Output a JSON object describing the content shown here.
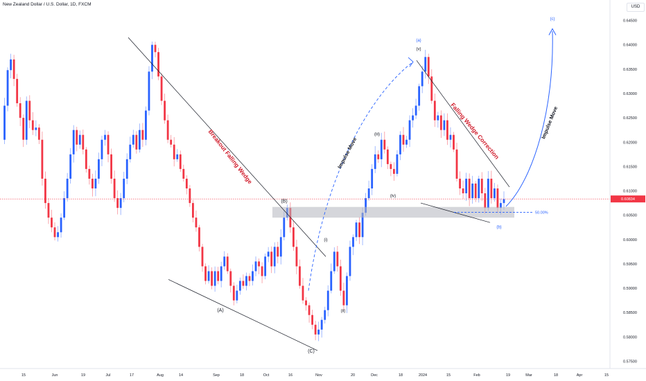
{
  "header": {
    "title": "New Zealand Dollar / U.S. Dollar, 1D, FXCM",
    "currency_label": "USD"
  },
  "chart_data": {
    "type": "candlestick",
    "title": "New Zealand Dollar / U.S. Dollar, 1D, FXCM",
    "y_axis": {
      "min": 0.5745,
      "max": 0.6475,
      "position": "right",
      "ticks": [
        "0.57500",
        "0.58000",
        "0.58500",
        "0.59000",
        "0.59500",
        "0.60000",
        "0.60500",
        "0.61000",
        "0.61500",
        "0.62000",
        "0.62500",
        "0.63000",
        "0.63500",
        "0.64000",
        "0.64500"
      ]
    },
    "x_axis": {
      "ticks": [
        "15",
        "Jun",
        "19",
        "Jul",
        "17",
        "Aug",
        "14",
        "Sep",
        "18",
        "Oct",
        "16",
        "Nov",
        "20",
        "Dec",
        "18",
        "2024",
        "15",
        "Feb",
        "19",
        "Mar",
        "18",
        "Apr",
        "15"
      ]
    },
    "last_price": {
      "value": 0.60834,
      "label": "0.60834"
    },
    "colors": {
      "up": "#2962ff",
      "down": "#f23645",
      "trendline": "#131722",
      "annotation_red": "#d1202f",
      "annotation_blue": "#2962ff",
      "zone": "#b2b5be"
    },
    "price_path": [
      0.6205,
      0.6275,
      0.6348,
      0.637,
      0.633,
      0.628,
      0.625,
      0.6205,
      0.6285,
      0.6245,
      0.6225,
      0.623,
      0.6205,
      0.6125,
      0.6075,
      0.6045,
      0.6025,
      0.6005,
      0.6015,
      0.6045,
      0.6085,
      0.6125,
      0.6175,
      0.6225,
      0.6195,
      0.6215,
      0.6185,
      0.6145,
      0.6125,
      0.6105,
      0.6125,
      0.6165,
      0.6205,
      0.6215,
      0.6175,
      0.6125,
      0.6085,
      0.6065,
      0.6085,
      0.6125,
      0.6165,
      0.6195,
      0.6215,
      0.6185,
      0.6225,
      0.6205,
      0.6265,
      0.6345,
      0.64,
      0.6385,
      0.6335,
      0.6285,
      0.6245,
      0.6205,
      0.6195,
      0.6165,
      0.6175,
      0.6145,
      0.6125,
      0.6105,
      0.6075,
      0.6045,
      0.6025,
      0.5985,
      0.5945,
      0.5915,
      0.5935,
      0.5905,
      0.5935,
      0.5915,
      0.5945,
      0.5965,
      0.5935,
      0.5905,
      0.5875,
      0.5895,
      0.5915,
      0.5905,
      0.5925,
      0.5915,
      0.5935,
      0.5955,
      0.5945,
      0.5925,
      0.5965,
      0.5975,
      0.5945,
      0.5985,
      0.5965,
      0.6005,
      0.6045,
      0.6065,
      0.6025,
      0.5985,
      0.5945,
      0.5905,
      0.5875,
      0.5865,
      0.5845,
      0.5825,
      0.5805,
      0.5815,
      0.5835,
      0.5855,
      0.5895,
      0.5935,
      0.5975,
      0.5945,
      0.5895,
      0.5865,
      0.5925,
      0.5985,
      0.6005,
      0.6035,
      0.6005,
      0.6055,
      0.6085,
      0.6105,
      0.6145,
      0.6175,
      0.6165,
      0.6205,
      0.6185,
      0.6155,
      0.6145,
      0.6135,
      0.6175,
      0.6215,
      0.6195,
      0.6205,
      0.6245,
      0.6255,
      0.6275,
      0.6315,
      0.6345,
      0.6375,
      0.6335,
      0.6285,
      0.6245,
      0.6255,
      0.6225,
      0.6245,
      0.6205,
      0.6215,
      0.6185,
      0.6125,
      0.6105,
      0.6095,
      0.6125,
      0.6085,
      0.6115,
      0.6085,
      0.6125,
      0.6095,
      0.6065,
      0.6125,
      0.6085,
      0.6105,
      0.6065,
      0.6075,
      0.6083
    ],
    "trendlines": [
      {
        "from": [
          185,
          0.6415
        ],
        "to": [
          470,
          0.5965
        ]
      },
      {
        "from": [
          243,
          0.5918
        ],
        "to": [
          458,
          0.5772
        ]
      },
      {
        "from": [
          601,
          0.6368
        ],
        "to": [
          735,
          0.6108
        ]
      },
      {
        "from": [
          607,
          0.6075
        ],
        "to": [
          707,
          0.6035
        ]
      }
    ],
    "zone": {
      "x_start": 393,
      "x_end": 742,
      "top": 0.6067,
      "bottom": 0.6045
    },
    "fib_level": {
      "value": 0.6056,
      "label": "50.00%"
    },
    "wave_labels": [
      {
        "text": "(A)",
        "x": 318,
        "price": 0.5852
      },
      {
        "text": "(B)",
        "x": 410,
        "price": 0.6076
      },
      {
        "text": "(C)",
        "x": 449,
        "price": 0.5768
      },
      {
        "text": "(i)",
        "x": 470,
        "price": 0.5997
      },
      {
        "text": "(ii)",
        "x": 495,
        "price": 0.5851
      },
      {
        "text": "(iii)",
        "x": 544,
        "price": 0.6214
      },
      {
        "text": "(iv)",
        "x": 567,
        "price": 0.6087
      },
      {
        "text": "(v)",
        "x": 604,
        "price": 0.6389
      },
      {
        "text": "(a)",
        "x": 604,
        "price": 0.6407
      },
      {
        "text": "(b)",
        "x": 720,
        "price": 0.6023
      },
      {
        "text": "(c)",
        "x": 797,
        "price": 0.6451
      }
    ],
    "annotations": [
      {
        "text": "Breakout Falling Wedge",
        "color": "red"
      },
      {
        "text": "Falling Wedge Correction",
        "color": "red"
      },
      {
        "text": "Impulse Move",
        "color": "dark"
      },
      {
        "text": "Impulse Move",
        "color": "dark"
      }
    ]
  }
}
